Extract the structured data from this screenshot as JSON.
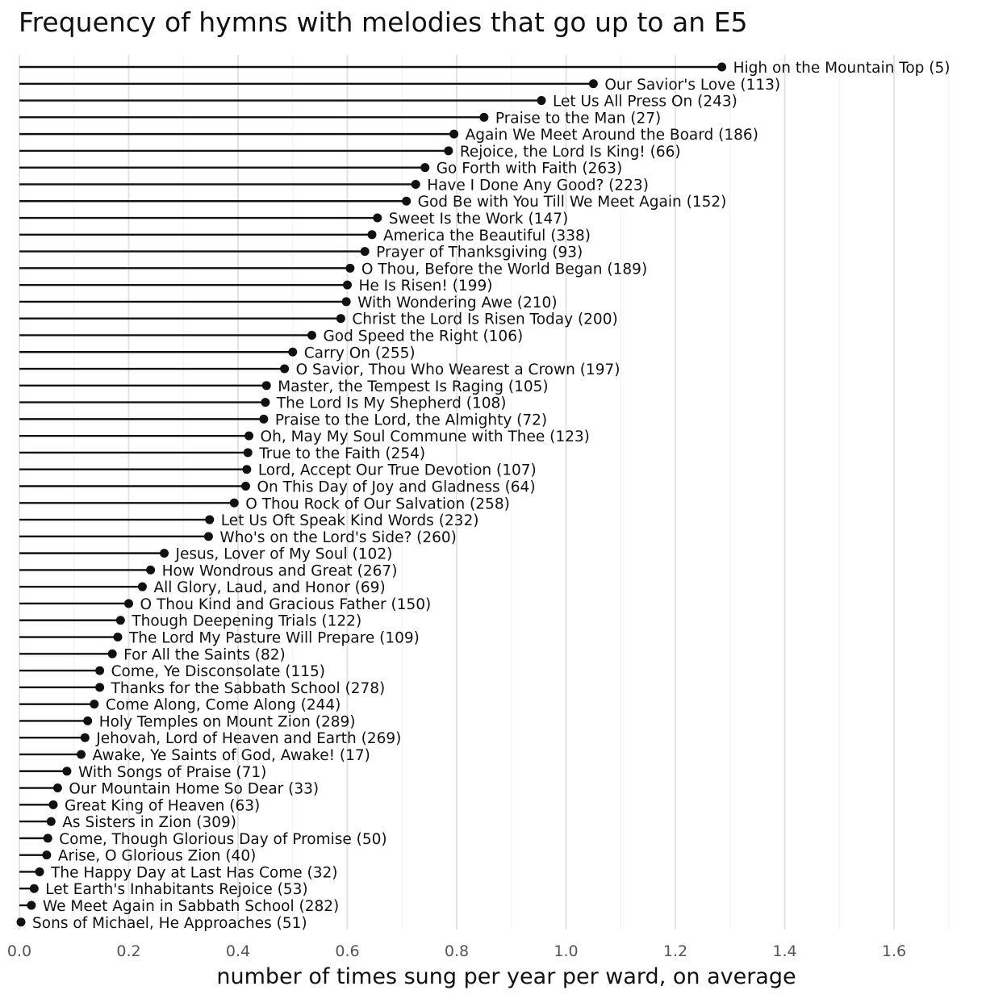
{
  "chart_data": {
    "type": "lollipop",
    "title": "Frequency of hymns with melodies that go up to an E5",
    "xlabel": "number of times sung per year per ward, on average",
    "ylabel": "",
    "xlim": [
      0,
      1.72
    ],
    "x_ticks": [
      "0.0",
      "0.2",
      "0.4",
      "0.6",
      "0.8",
      "1.0",
      "1.2",
      "1.4",
      "1.6"
    ],
    "grid": true,
    "labels": [
      "High on the Mountain Top (5)",
      "Our Savior's Love (113)",
      "Let Us All Press On (243)",
      "Praise to the Man (27)",
      "Again We Meet Around the Board (186)",
      "Rejoice, the Lord Is King! (66)",
      "Go Forth with Faith (263)",
      "Have I Done Any Good? (223)",
      "God Be with You Till We Meet Again (152)",
      "Sweet Is the Work (147)",
      "America the Beautiful (338)",
      "Prayer of Thanksgiving (93)",
      "O Thou, Before the World Began (189)",
      "He Is Risen! (199)",
      "With Wondering Awe (210)",
      "Christ the Lord Is Risen Today (200)",
      "God Speed the Right (106)",
      "Carry On (255)",
      "O Savior, Thou Who Wearest a Crown (197)",
      "Master, the Tempest Is Raging (105)",
      "The Lord Is My Shepherd (108)",
      "Praise to the Lord, the Almighty (72)",
      "Oh, May My Soul Commune with Thee (123)",
      "True to the Faith (254)",
      "Lord, Accept Our True Devotion (107)",
      "On This Day of Joy and Gladness (64)",
      "O Thou Rock of Our Salvation (258)",
      "Let Us Oft Speak Kind Words (232)",
      "Who's on the Lord's Side? (260)",
      "Jesus, Lover of My Soul (102)",
      "How Wondrous and Great (267)",
      "All Glory, Laud, and Honor (69)",
      "O Thou Kind and Gracious Father (150)",
      "Though Deepening Trials (122)",
      "The Lord My Pasture Will Prepare (109)",
      "For All the Saints (82)",
      "Come, Ye Disconsolate (115)",
      "Thanks for the Sabbath School (278)",
      "Come Along, Come Along (244)",
      "Holy Temples on Mount Zion (289)",
      "Jehovah, Lord of Heaven and Earth (269)",
      "Awake, Ye Saints of God, Awake! (17)",
      "With Songs of Praise (71)",
      "Our Mountain Home So Dear (33)",
      "Great King of Heaven (63)",
      "As Sisters in Zion (309)",
      "Come, Though Glorious Day of Promise (50)",
      "Arise, O Glorious Zion (40)",
      "The Happy Day at Last Has Come (32)",
      "Let Earth's Inhabitants Rejoice (53)",
      "We Meet Again in Sabbath School (282)",
      "Sons of Michael, He Approaches (51)"
    ],
    "values": [
      1.285,
      1.05,
      0.955,
      0.85,
      0.795,
      0.785,
      0.742,
      0.725,
      0.708,
      0.655,
      0.645,
      0.632,
      0.605,
      0.6,
      0.598,
      0.588,
      0.535,
      0.5,
      0.485,
      0.452,
      0.45,
      0.447,
      0.42,
      0.418,
      0.416,
      0.414,
      0.393,
      0.348,
      0.346,
      0.265,
      0.24,
      0.225,
      0.2,
      0.185,
      0.18,
      0.17,
      0.147,
      0.147,
      0.137,
      0.125,
      0.12,
      0.113,
      0.087,
      0.07,
      0.062,
      0.058,
      0.052,
      0.05,
      0.037,
      0.027,
      0.022,
      0.003
    ]
  }
}
